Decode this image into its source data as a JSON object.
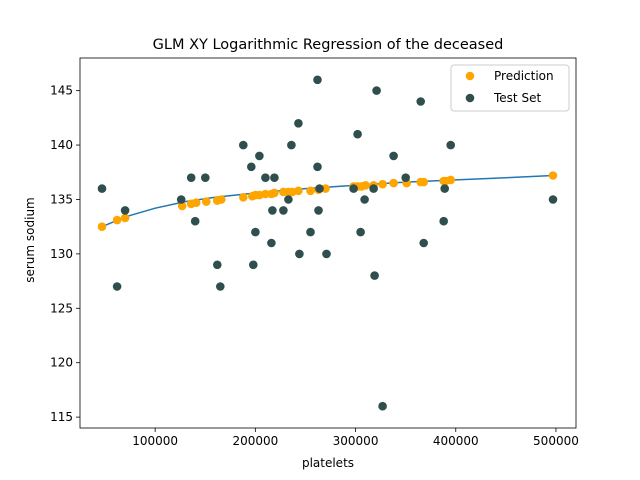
{
  "chart_data": {
    "type": "scatter",
    "title": "GLM XY Logarithmic Regression of the deceased",
    "xlabel": "platelets",
    "ylabel": "serum sodium",
    "xlim": [
      25000,
      520000
    ],
    "ylim": [
      114,
      148
    ],
    "x_ticks": [
      100000,
      200000,
      300000,
      400000,
      500000
    ],
    "x_tick_labels": [
      "100000",
      "200000",
      "300000",
      "400000",
      "500000"
    ],
    "y_ticks": [
      115,
      120,
      125,
      130,
      135,
      140,
      145
    ],
    "y_tick_labels": [
      "115",
      "120",
      "125",
      "130",
      "135",
      "140",
      "145"
    ],
    "grid": false,
    "legend_position": "top-right",
    "fit_curve": {
      "model": "logarithmic",
      "color": "#1f77b4",
      "x": [
        47000,
        70000,
        100000,
        130000,
        160000,
        200000,
        250000,
        300000,
        350000,
        400000,
        450000,
        497000
      ],
      "y": [
        132.5,
        133.4,
        134.2,
        134.8,
        135.2,
        135.6,
        136.0,
        136.3,
        136.6,
        136.8,
        137.0,
        137.2
      ]
    },
    "series": [
      {
        "name": "Prediction",
        "color": "#ffa500",
        "points": [
          [
            47000,
            132.5
          ],
          [
            62000,
            133.1
          ],
          [
            70000,
            133.3
          ],
          [
            127000,
            134.4
          ],
          [
            136000,
            134.6
          ],
          [
            141000,
            134.7
          ],
          [
            151000,
            134.8
          ],
          [
            162000,
            134.9
          ],
          [
            166000,
            135.0
          ],
          [
            188000,
            135.2
          ],
          [
            197000,
            135.3
          ],
          [
            200000,
            135.4
          ],
          [
            204000,
            135.4
          ],
          [
            210000,
            135.5
          ],
          [
            216000,
            135.5
          ],
          [
            219000,
            135.6
          ],
          [
            228000,
            135.7
          ],
          [
            233000,
            135.7
          ],
          [
            237000,
            135.7
          ],
          [
            243000,
            135.8
          ],
          [
            255000,
            135.8
          ],
          [
            263000,
            135.9
          ],
          [
            270000,
            136.0
          ],
          [
            298000,
            136.2
          ],
          [
            302000,
            136.2
          ],
          [
            306000,
            136.2
          ],
          [
            310000,
            136.3
          ],
          [
            318000,
            136.3
          ],
          [
            327000,
            136.4
          ],
          [
            338000,
            136.5
          ],
          [
            351000,
            136.5
          ],
          [
            365000,
            136.6
          ],
          [
            368000,
            136.6
          ],
          [
            388000,
            136.7
          ],
          [
            390000,
            136.7
          ],
          [
            395000,
            136.8
          ],
          [
            497000,
            137.2
          ]
        ]
      },
      {
        "name": "Test Set",
        "color": "#2f4f4f",
        "points": [
          [
            47000,
            136
          ],
          [
            62000,
            127
          ],
          [
            70000,
            134
          ],
          [
            126000,
            135
          ],
          [
            136000,
            137
          ],
          [
            140000,
            133
          ],
          [
            150000,
            137
          ],
          [
            162000,
            129
          ],
          [
            165000,
            127
          ],
          [
            188000,
            140
          ],
          [
            196000,
            138
          ],
          [
            198000,
            129
          ],
          [
            200000,
            132
          ],
          [
            204000,
            139
          ],
          [
            210000,
            137
          ],
          [
            216000,
            131
          ],
          [
            217000,
            134
          ],
          [
            219000,
            137
          ],
          [
            228000,
            134
          ],
          [
            233000,
            135
          ],
          [
            236000,
            140
          ],
          [
            243000,
            142
          ],
          [
            244000,
            130
          ],
          [
            255000,
            132
          ],
          [
            262000,
            146
          ],
          [
            262000,
            138
          ],
          [
            263000,
            134
          ],
          [
            264000,
            136
          ],
          [
            271000,
            130
          ],
          [
            298000,
            136
          ],
          [
            302000,
            141
          ],
          [
            305000,
            132
          ],
          [
            309000,
            135
          ],
          [
            318000,
            136
          ],
          [
            319000,
            128
          ],
          [
            321000,
            145
          ],
          [
            327000,
            116
          ],
          [
            338000,
            139
          ],
          [
            350000,
            137
          ],
          [
            365000,
            144
          ],
          [
            368000,
            131
          ],
          [
            388000,
            133
          ],
          [
            389000,
            136
          ],
          [
            395000,
            140
          ],
          [
            497000,
            135
          ]
        ]
      }
    ]
  }
}
